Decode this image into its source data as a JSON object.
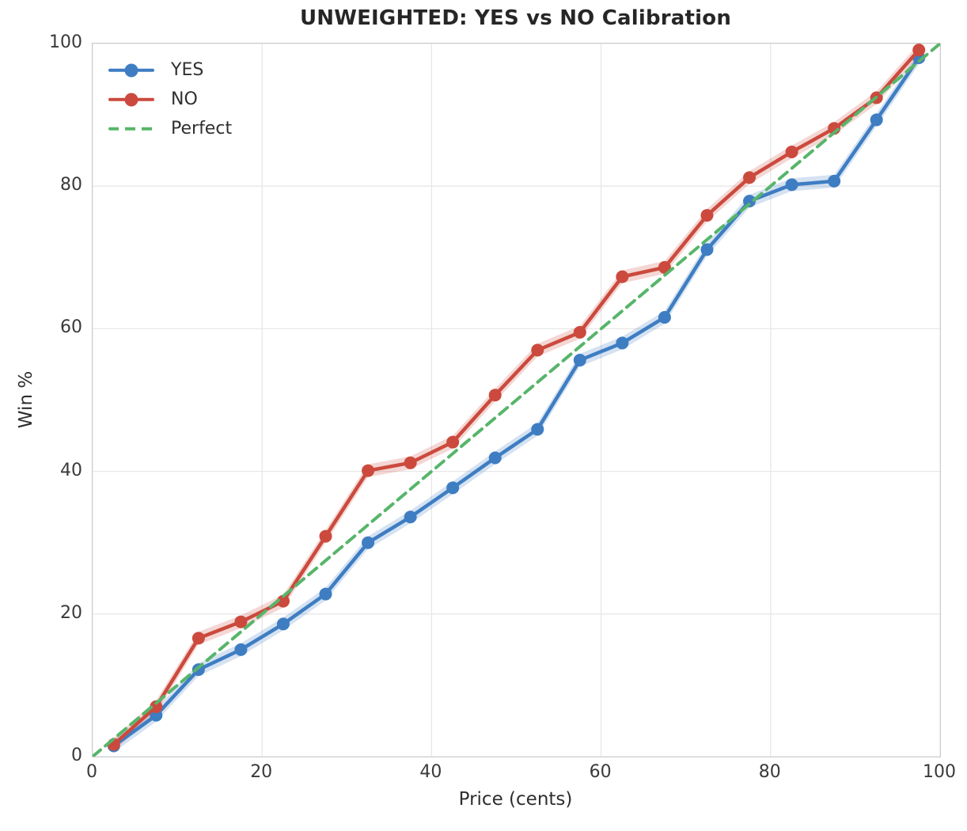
{
  "chart_data": {
    "type": "line",
    "title": "UNWEIGHTED: YES vs NO Calibration",
    "xlabel": "Price (cents)",
    "ylabel": "Win %",
    "xlim": [
      0,
      100
    ],
    "ylim": [
      0,
      100
    ],
    "x_ticks": [
      0,
      20,
      40,
      60,
      80,
      100
    ],
    "y_ticks": [
      0,
      20,
      40,
      60,
      80,
      100
    ],
    "grid": true,
    "legend_position": "upper-left",
    "x": [
      2.5,
      7.5,
      12.5,
      17.5,
      22.5,
      27.5,
      32.5,
      37.5,
      42.5,
      47.5,
      52.5,
      57.5,
      62.5,
      67.5,
      72.5,
      77.5,
      82.5,
      87.5,
      92.5,
      97.5
    ],
    "series": [
      {
        "name": "YES",
        "color": "#3e7dc2",
        "style": "solid",
        "marker": "circle",
        "band_halfwidth": 0.9,
        "values": [
          1.5,
          5.8,
          12.2,
          15.0,
          18.6,
          22.8,
          30.0,
          33.6,
          37.7,
          41.9,
          45.9,
          55.6,
          58.0,
          61.6,
          71.1,
          77.9,
          80.2,
          80.7,
          89.3,
          98.0
        ]
      },
      {
        "name": "NO",
        "color": "#cb4a3d",
        "style": "solid",
        "marker": "circle",
        "band_halfwidth": 0.9,
        "values": [
          1.7,
          7.0,
          16.6,
          18.9,
          21.8,
          30.9,
          40.1,
          41.2,
          44.1,
          50.7,
          57.0,
          59.5,
          67.3,
          68.6,
          75.9,
          81.2,
          84.8,
          88.1,
          92.4,
          99.1
        ]
      },
      {
        "name": "Perfect",
        "color": "#57b56a",
        "style": "dashed",
        "marker": "none",
        "x": [
          0,
          100
        ],
        "values": [
          0,
          100
        ]
      }
    ],
    "colors": {
      "grid": "#e7e7e7",
      "spine": "#c9cbce",
      "text": "#2e2e2e",
      "tick_text": "#3a3a3a"
    }
  }
}
